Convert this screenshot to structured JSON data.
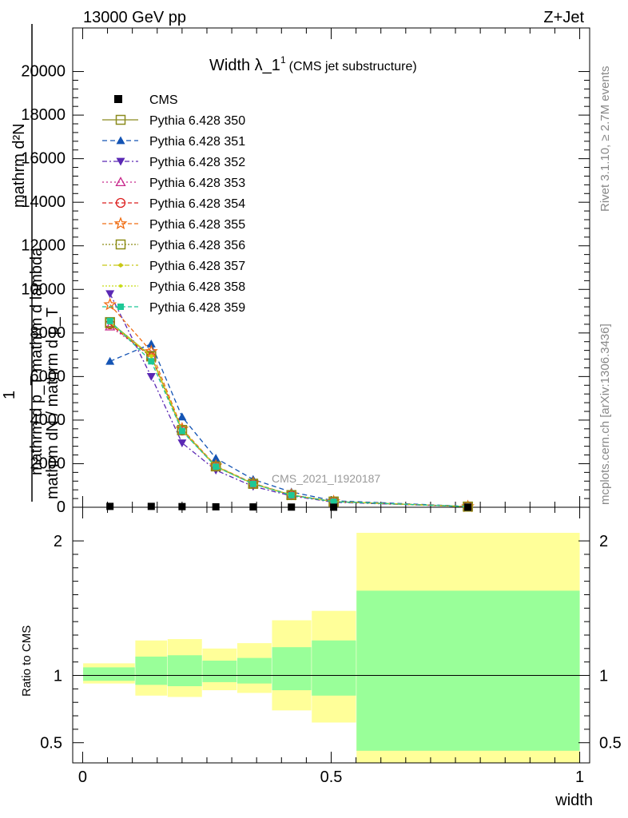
{
  "header": {
    "energy": "13000 GeV pp",
    "process": "Z+Jet",
    "title_main": "Width λ_1",
    "title_sup": "1",
    "title_sub": "(CMS jet substructure)",
    "side_top": "Rivet 3.1.10, ≥ 2.7M events",
    "side_bottom": "mcplots.cern.ch [arXiv:1306.3436]",
    "analysis": "CMS_2021_I1920187"
  },
  "axes": {
    "ylabel_main_numerator": "mathrm d²N",
    "ylabel_main_denominator": "mathrm d p_T mathrm d lambda",
    "ylabel_one": "1",
    "ylabel_main_norm": "mathrm dN / mathrm d p_T",
    "ylabel_ratio": "Ratio to CMS",
    "xlabel": "width"
  },
  "chart_data": {
    "type": "line",
    "x_bins": [
      0.0,
      0.105,
      0.17,
      0.24,
      0.31,
      0.38,
      0.46,
      0.55,
      1.0
    ],
    "x_centers": [
      0.055,
      0.138,
      0.2,
      0.268,
      0.343,
      0.42,
      0.505,
      0.775
    ],
    "xlim": [
      -0.02,
      1.02
    ],
    "main_ylim": [
      0,
      22000
    ],
    "main_yticks": [
      0,
      2000,
      4000,
      6000,
      8000,
      10000,
      12000,
      14000,
      16000,
      18000,
      20000
    ],
    "main_ytick_labels": [
      "0",
      "2000",
      "4000",
      "6000",
      "8000",
      "10000",
      "12000",
      "14000",
      "16000",
      "18000",
      "20000"
    ],
    "ratio_ylim": [
      0.35,
      2.25
    ],
    "ratio_ytick_labels": [
      "0.5",
      "1",
      "2"
    ],
    "xtick_labels": [
      "0",
      "0.5",
      "1"
    ],
    "data": {
      "name": "CMS",
      "values": [
        40,
        40,
        30,
        20,
        15,
        8,
        3,
        1
      ]
    },
    "series": [
      {
        "name": "Pythia 6.428 350",
        "color": "#8b8b1e",
        "marker": "square-open",
        "dash": "",
        "values": [
          8500,
          6950,
          3550,
          1880,
          1080,
          560,
          260,
          30
        ]
      },
      {
        "name": "Pythia 6.428 351",
        "color": "#1454b4",
        "marker": "triangle-up",
        "dash": "6,4",
        "values": [
          6700,
          7500,
          4150,
          2250,
          1280,
          700,
          300,
          40
        ]
      },
      {
        "name": "Pythia 6.428 352",
        "color": "#5a28b4",
        "marker": "triangle-down",
        "dash": "6,3,2,3",
        "values": [
          9800,
          6000,
          2950,
          1700,
          960,
          520,
          230,
          30
        ]
      },
      {
        "name": "Pythia 6.428 353",
        "color": "#c8288c",
        "marker": "triangle-up-open",
        "dash": "2,3",
        "values": [
          8300,
          6950,
          3500,
          1860,
          1070,
          555,
          255,
          30
        ]
      },
      {
        "name": "Pythia 6.428 354",
        "color": "#dc1e1e",
        "marker": "circle-open",
        "dash": "5,3",
        "values": [
          8400,
          6900,
          3520,
          1870,
          1075,
          558,
          258,
          30
        ]
      },
      {
        "name": "Pythia 6.428 355",
        "color": "#f06e14",
        "marker": "star-open",
        "dash": "5,3",
        "values": [
          9300,
          7150,
          3600,
          1900,
          1100,
          570,
          262,
          31
        ]
      },
      {
        "name": "Pythia 6.428 356",
        "color": "#8c8c14",
        "marker": "square-open",
        "dash": "2,2",
        "values": [
          8450,
          6920,
          3540,
          1875,
          1078,
          559,
          259,
          30
        ]
      },
      {
        "name": "Pythia 6.428 357",
        "color": "#c8c814",
        "marker": "diamond",
        "dash": "6,3,2,3",
        "values": [
          8480,
          6940,
          3545,
          1878,
          1079,
          560,
          260,
          30
        ]
      },
      {
        "name": "Pythia 6.428 358",
        "color": "#c8dc14",
        "marker": "dot",
        "dash": "2,2",
        "values": [
          8470,
          6930,
          3540,
          1876,
          1078,
          559,
          259,
          30
        ]
      },
      {
        "name": "Pythia 6.428 359",
        "color": "#1ec896",
        "marker": "square",
        "dash": "5,3",
        "values": [
          8550,
          6700,
          3500,
          1860,
          1070,
          555,
          256,
          30
        ]
      }
    ],
    "ratio_band_yellow": [
      [
        0.94,
        1.09
      ],
      [
        0.85,
        1.26
      ],
      [
        0.84,
        1.27
      ],
      [
        0.89,
        1.2
      ],
      [
        0.87,
        1.24
      ],
      [
        0.74,
        1.41
      ],
      [
        0.65,
        1.48
      ],
      [
        0.35,
        2.06
      ]
    ],
    "ratio_band_green": [
      [
        0.96,
        1.06
      ],
      [
        0.93,
        1.14
      ],
      [
        0.92,
        1.15
      ],
      [
        0.95,
        1.11
      ],
      [
        0.94,
        1.13
      ],
      [
        0.89,
        1.21
      ],
      [
        0.85,
        1.26
      ],
      [
        0.44,
        1.63
      ]
    ],
    "legend_position": "top-left"
  }
}
